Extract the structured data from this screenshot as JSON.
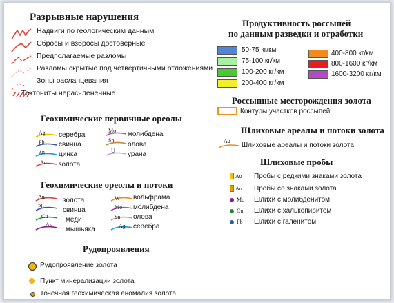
{
  "faults": {
    "title": "Разрывные нарушения",
    "items": [
      {
        "label": "Надвиги по геологическим данным"
      },
      {
        "label": "Сбросы  и взбросы достоверные"
      },
      {
        "label": "Предполагаемые разломы"
      },
      {
        "label": "Разломы скрытые под четвертичными отложениями"
      },
      {
        "label": "Зоны расланцевания"
      },
      {
        "label": "Тектониты нерасчлененные"
      }
    ]
  },
  "primary_halos": {
    "title": "Геохимические первичные ореолы",
    "left": [
      {
        "symbol": "Ag",
        "label": "серебра"
      },
      {
        "symbol": "Pb",
        "label": "свинца"
      },
      {
        "symbol": "Zn",
        "label": "цинка"
      },
      {
        "symbol": "Au",
        "label": "золота"
      }
    ],
    "right": [
      {
        "symbol": "Mo",
        "label": "молибдена"
      },
      {
        "symbol": "Sn",
        "label": "олова"
      },
      {
        "symbol": "U",
        "label": "урана"
      }
    ]
  },
  "halos_streams": {
    "title": "Геохимические  ореолы и потоки",
    "left": [
      {
        "symbol": "Au",
        "label": "золота"
      },
      {
        "symbol": "Pb",
        "label": "свинца"
      },
      {
        "symbol": "Cu",
        "label": "меди"
      },
      {
        "symbol": "As",
        "label": "мышьяка"
      }
    ],
    "right": [
      {
        "symbol": "W",
        "label": "вольфрама"
      },
      {
        "symbol": "Mo",
        "label": "молибдена"
      },
      {
        "symbol": "Sn",
        "label": "олова"
      },
      {
        "symbol": "Ag",
        "label": "серебра"
      }
    ]
  },
  "ore": {
    "title": "Рудопроявления",
    "items": [
      {
        "label": "Рудопроявление золота"
      },
      {
        "label": "Пункт минерализации золота"
      },
      {
        "label": "Точечная геохимическая аномалия золота"
      }
    ]
  },
  "productivity": {
    "title_line1": "Продуктивность россыпей",
    "title_line2": "по данным разведки и отработки",
    "left": [
      {
        "label": "50-75  кг/км",
        "color": "#4f86d9"
      },
      {
        "label": "75-100  кг/км",
        "color": "#a9f0a0"
      },
      {
        "label": "100-200  кг/км",
        "color": "#49c832"
      },
      {
        "label": "200-400  кг/км",
        "color": "#f3ee2a"
      }
    ],
    "right": [
      {
        "label": "400-800  кг/км",
        "color": "#f38a1e"
      },
      {
        "label": "800-1600  кг/км",
        "color": "#e81e1e"
      },
      {
        "label": "1600-3200  кг/км",
        "color": "#b24bc4"
      }
    ]
  },
  "placer": {
    "title": "Россыпные месторождения золота",
    "item": "Контуры участков россыпей"
  },
  "shlikh_areas": {
    "title": "Шлиховые  ареалы и потоки золота",
    "symbol": "Au",
    "item": "Шлиховые ареалы и потоки золота"
  },
  "shlikh_samples": {
    "title": "Шлиховые пробы",
    "items": [
      {
        "symbol": "Au",
        "label": "Пробы с редкими знаками золота",
        "color": "#f2c400"
      },
      {
        "symbol": "Au",
        "label": "Пробы со знаками золота",
        "color": "#e0a000"
      },
      {
        "symbol": "Mo",
        "label": "Шлихи с молибденитом",
        "color": "#8c1a8c"
      },
      {
        "symbol": "Cu",
        "label": "Шлихи с халькопиритом",
        "color": "#1e8a2e"
      },
      {
        "symbol": "Pb",
        "label": "Шлихи с галенитом",
        "color": "#2a5fa8"
      }
    ]
  }
}
